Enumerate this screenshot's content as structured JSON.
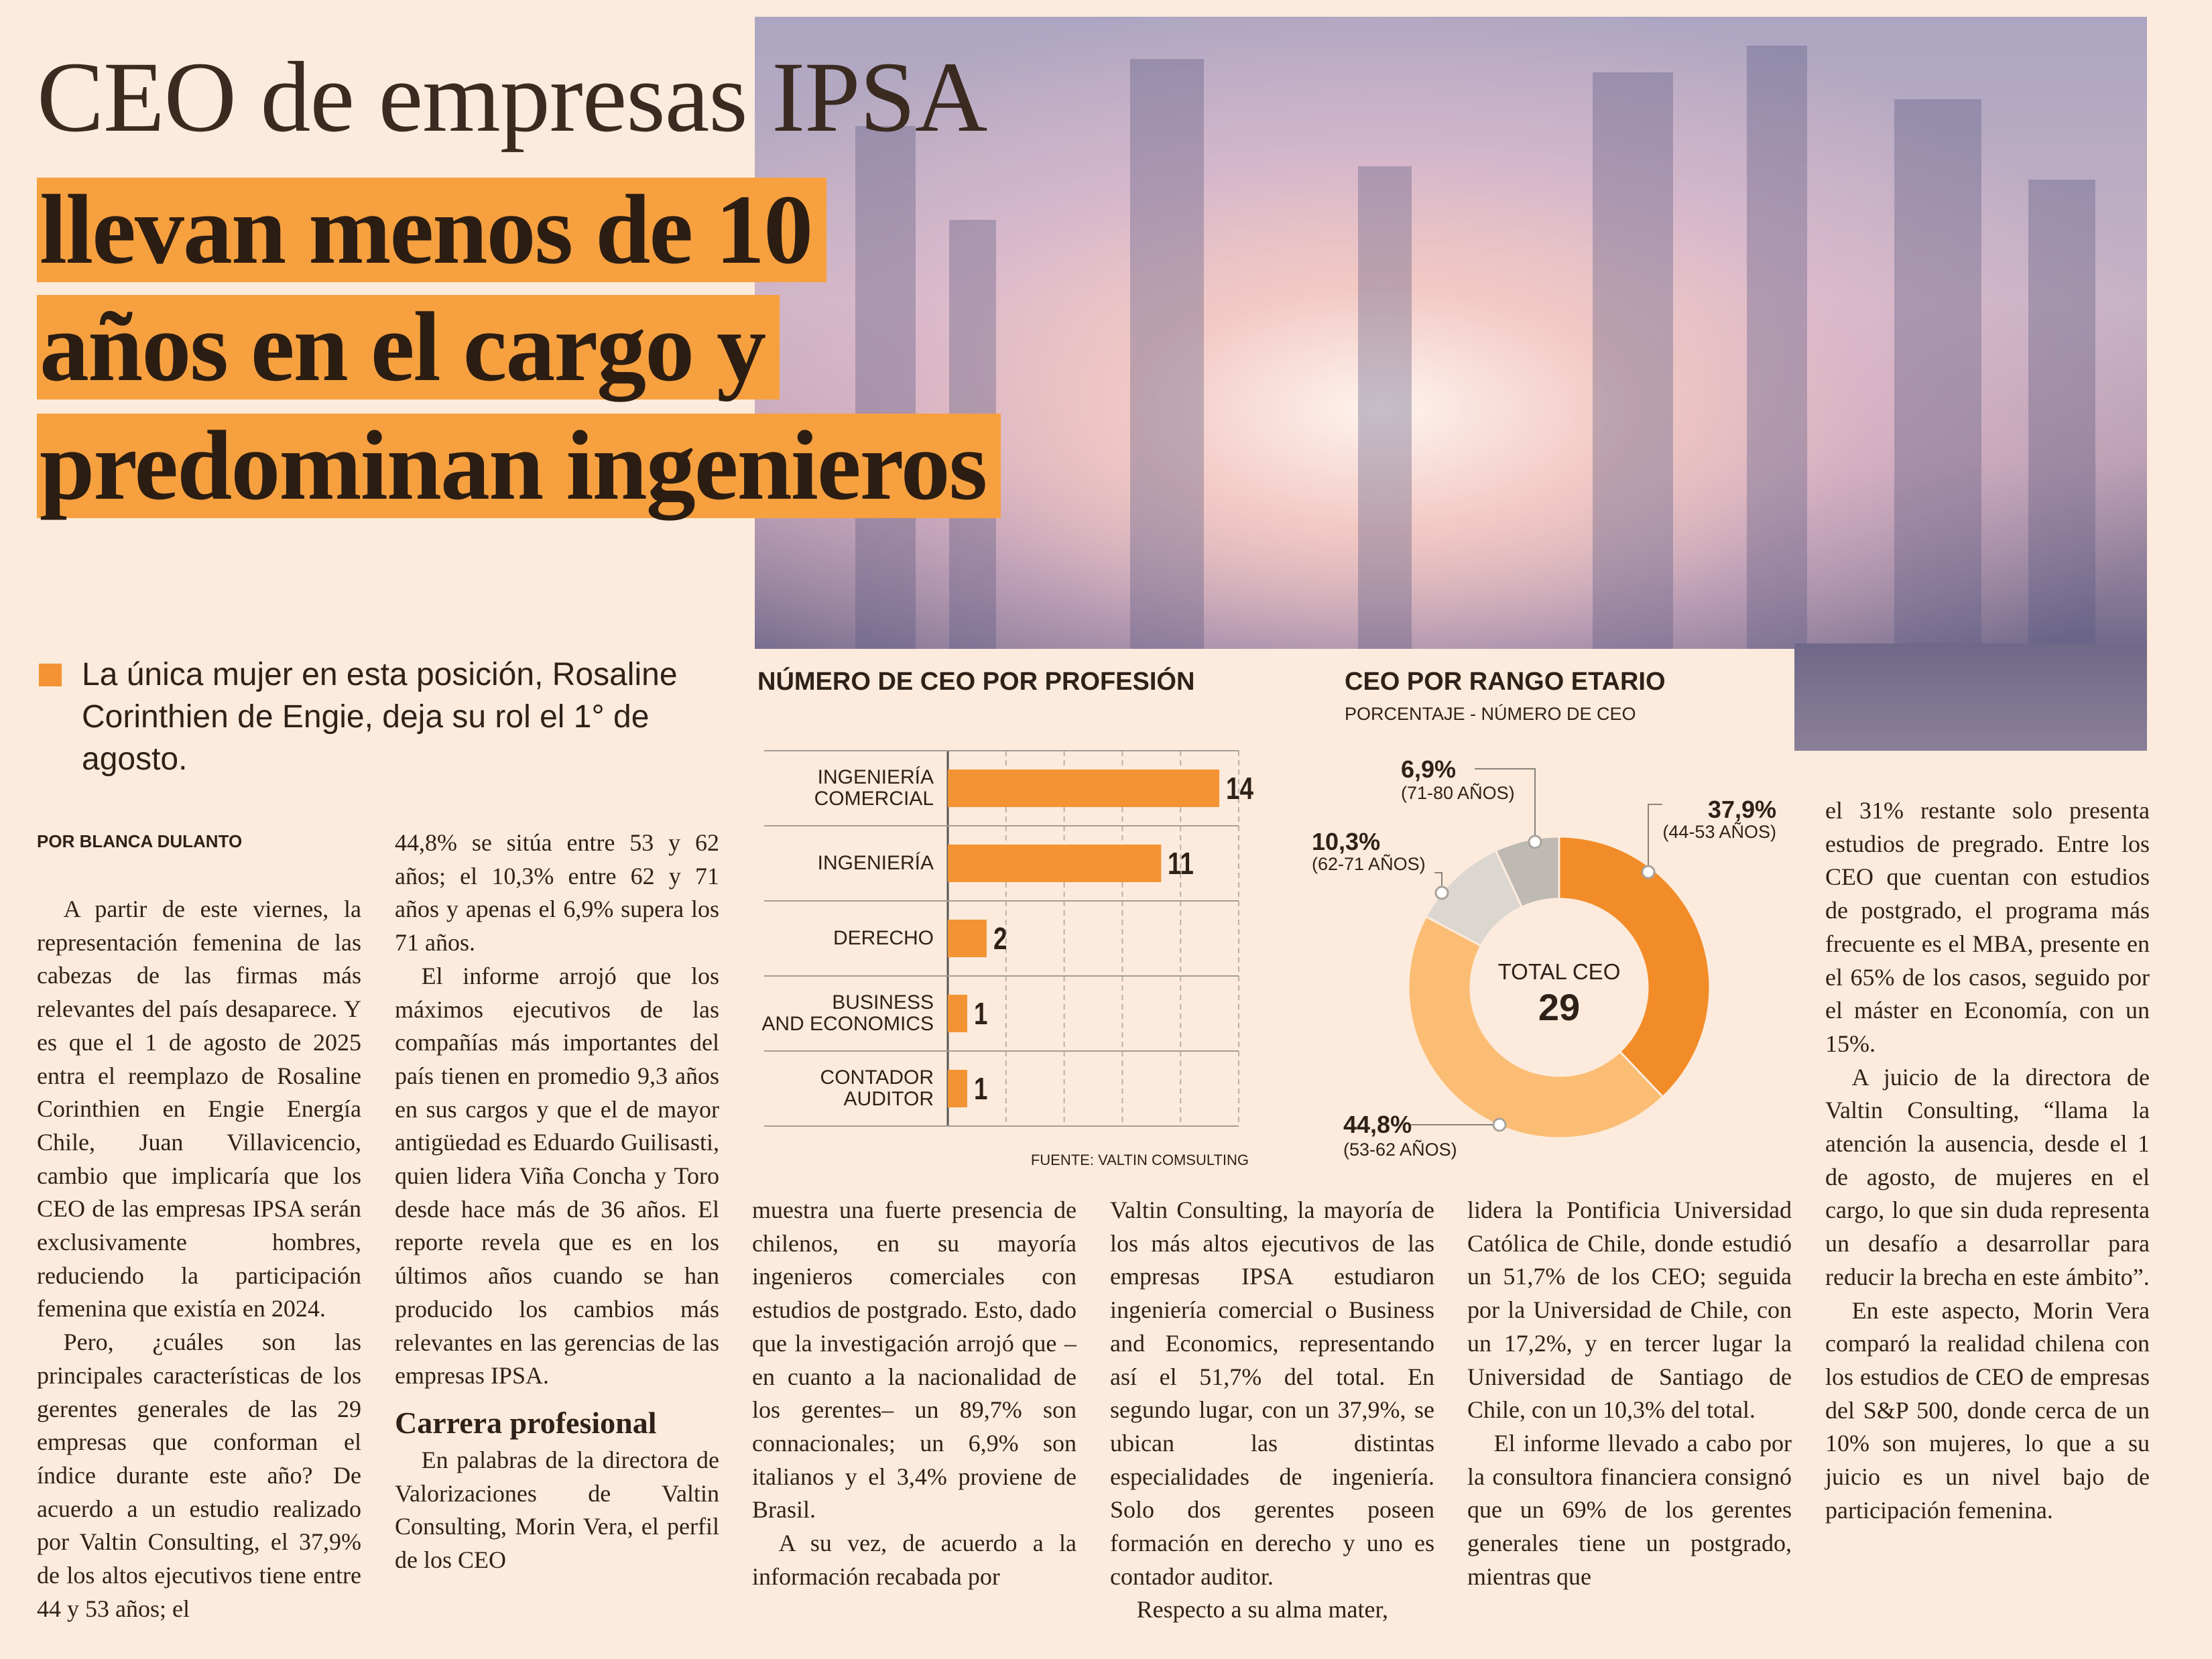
{
  "header": {
    "title": "CEO de empresas IPSA",
    "highlight": [
      "llevan menos de 10",
      "años en el cargo y",
      "predominan ingenieros"
    ],
    "lead": "La única mujer en esta posición, Rosaline Corinthien de Engie, deja su rol el 1° de agosto.",
    "byline": "POR BLANCA DULANTO"
  },
  "article": {
    "columns": [
      [
        "A partir de este viernes, la representación femenina de las cabezas de las firmas más relevantes del país desaparece. Y es que el 1 de agosto de 2025 entra el reemplazo de Rosaline Corinthien en Engie Energía Chile, Juan Villavicencio, cambio que implicaría que los CEO de las empresas IPSA serán exclusivamente hombres, reduciendo la participación femenina que existía en 2024.",
        "Pero, ¿cuáles son las principales características de los gerentes generales de las 29 empresas que conforman el índice durante este año? De acuerdo a un estudio realizado por Valtin Consulting, el 37,9% de los altos ejecutivos tiene entre 44 y 53 años; el"
      ],
      [
        "44,8% se sitúa entre 53 y 62 años; el 10,3% entre 62 y 71 años y apenas el 6,9% supera los 71 años.",
        "El informe arrojó que los máximos ejecutivos de las compañías más importantes del país tienen en promedio 9,3 años en sus cargos y que el de mayor antigüedad es Eduardo Guilisasti, quien lidera Viña Concha y Toro desde hace más de 36 años. El reporte revela que es en los últimos años cuando se han producido los cambios más relevantes en las gerencias de las empresas IPSA.",
        "Carrera profesional",
        "En palabras de la directora de Valorizaciones de Valtin Consulting, Morin Vera, el perfil de los CEO"
      ],
      [
        "muestra una fuerte presencia de chilenos, en su mayoría ingenieros comerciales con estudios de postgrado. Esto, dado que la investigación arrojó que –en cuanto a la nacionalidad de los gerentes– un 89,7% son connacionales; un 6,9% son italianos y el 3,4% proviene de Brasil.",
        "A su vez, de acuerdo a la información recabada por"
      ],
      [
        "Valtin Consulting, la mayoría de los más altos ejecutivos de las empresas IPSA estudiaron ingeniería comercial o Business and Economics, representando así el 51,7% del total. En segundo lugar, con un 37,9%, se ubican las distintas especialidades de ingeniería. Solo dos gerentes poseen formación en derecho y uno es contador auditor.",
        "Respecto a su alma mater,"
      ],
      [
        "lidera la Pontificia Universidad Católica de Chile, donde estudió un 51,7% de los CEO; seguida por la Universidad de Chile, con un 17,2%, y en tercer lugar la Universidad de Santiago de Chile, con un 10,3% del total.",
        "El informe llevado a cabo por la consultora financiera consignó que un 69% de los gerentes generales tiene un postgrado, mientras que"
      ],
      [
        "el 31% restante solo presenta estudios de pregrado. Entre los CEO que cuentan con estudios de postgrado, el programa más frecuente es el MBA, presente en el 65% de los casos, seguido por el máster en Economía, con un 15%.",
        "A juicio de la directora de Valtin Consulting, “llama la atención la ausencia, desde el 1 de agosto, de mujeres en el cargo, lo que sin duda representa un desafío a desarrollar para reducir la brecha en este ámbito”.",
        "En este aspecto, Morin Vera comparó la realidad chilena con los estudios de CEO de empresas del S&P 500, donde cerca de un 10% son mujeres, lo que a su juicio es un nivel bajo de participación femenina."
      ]
    ]
  },
  "chart_data": [
    {
      "type": "hbar",
      "title": "NÚMERO DE CEO POR PROFESIÓN",
      "categories": [
        "INGENIERÍA\nCOMERCIAL",
        "INGENIERÍA",
        "DERECHO",
        "BUSINESS\nAND ECONOMICS",
        "CONTADOR\nAUDITOR"
      ],
      "values": [
        14,
        11,
        2,
        1,
        1
      ],
      "color": "#f39333",
      "xlim": [
        0,
        15
      ],
      "xticks": [
        0,
        3,
        6,
        9,
        12,
        15
      ],
      "grid": true,
      "source": "FUENTE: VALTIN COMSULTING"
    },
    {
      "type": "donut",
      "title": "CEO POR RANGO ETARIO",
      "subtitle": "PORCENTAJE - NÚMERO DE  CEO",
      "categories": [
        "(44-53 AÑOS)",
        "(53-62 AÑOS)",
        "(62-71 AÑOS)",
        "(71-80 AÑOS)"
      ],
      "values": [
        37.9,
        44.8,
        10.3,
        6.9
      ],
      "value_labels": [
        "37,9%",
        "44,8%",
        "10,3%",
        "6,9%"
      ],
      "colors": [
        "#f28c28",
        "#fbbd74",
        "#dcd6d0",
        "#bfb9b4"
      ],
      "center_label": "TOTAL CEO",
      "total": 29
    }
  ]
}
